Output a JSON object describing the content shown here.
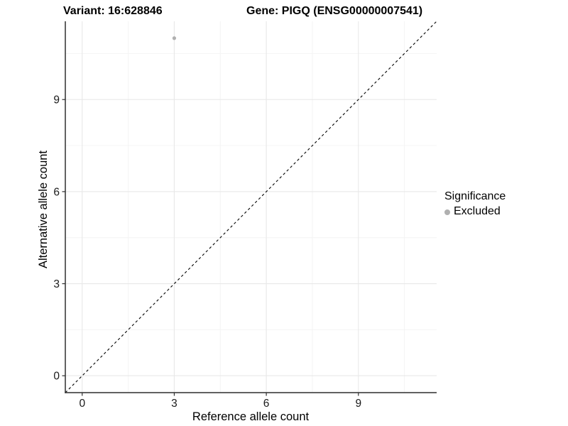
{
  "chart_data": {
    "type": "scatter",
    "title_left": "Variant: 16:628846",
    "title_right": "Gene: PIGQ (ENSG00000007541)",
    "xlabel": "Reference allele count",
    "ylabel": "Alternative allele count",
    "xlim": [
      -0.55,
      11.55
    ],
    "ylim": [
      -0.55,
      11.55
    ],
    "x_ticks": [
      0,
      3,
      6,
      9
    ],
    "y_ticks": [
      0,
      3,
      6,
      9
    ],
    "x_minor_ticks": [
      1.5,
      4.5,
      7.5,
      10.5
    ],
    "y_minor_ticks": [
      1.5,
      4.5,
      7.5,
      10.5
    ],
    "grid": true,
    "reference_line": {
      "slope": 1,
      "intercept": 0,
      "style": "dashed",
      "color": "#000000"
    },
    "series": [
      {
        "name": "Excluded",
        "color": "#b0b0b0",
        "points": [
          {
            "x": 3,
            "y": 11
          }
        ]
      }
    ],
    "legend": {
      "title": "Significance",
      "position": "right",
      "items": [
        {
          "label": "Excluded",
          "color": "#b0b0b0"
        }
      ]
    },
    "colors": {
      "background": "#ffffff",
      "grid_major": "#e8e8e8",
      "grid_minor": "#f4f4f4",
      "axis_line": "#2f2f2f",
      "tick_text": "#1a1a1a"
    }
  }
}
